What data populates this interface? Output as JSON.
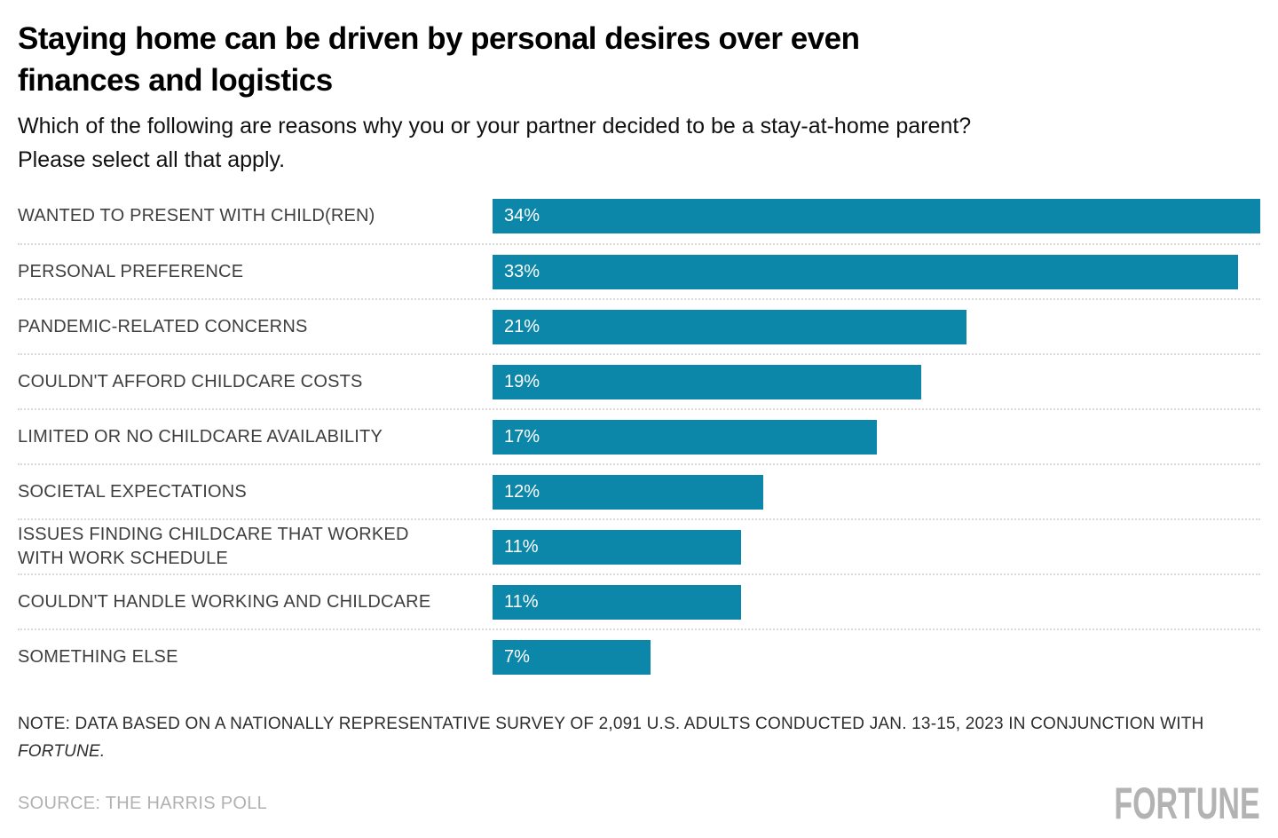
{
  "header": {
    "title_lines": [
      "Staying home can be driven by personal desires over even",
      "finances and logistics"
    ],
    "subtitle_lines": [
      "Which of the following are reasons why you or your partner decided to be a stay-at-home parent?",
      "Please select all that apply."
    ]
  },
  "chart_data": {
    "type": "bar",
    "orientation": "horizontal",
    "title": "Staying home can be driven by personal desires over even finances and logistics",
    "subtitle": "Which of the following are reasons why you or your partner decided to be a stay-at-home parent? Please select all that apply.",
    "categories": [
      "WANTED TO PRESENT WITH CHILD(REN)",
      "PERSONAL PREFERENCE",
      "PANDEMIC-RELATED CONCERNS",
      "COULDN'T AFFORD CHILDCARE COSTS",
      "LIMITED OR NO CHILDCARE AVAILABILITY",
      "SOCIETAL EXPECTATIONS",
      "ISSUES FINDING CHILDCARE THAT WORKED WITH WORK SCHEDULE",
      "COULDN'T HANDLE WORKING AND CHILDCARE",
      "SOMETHING ELSE"
    ],
    "values": [
      34,
      33,
      21,
      19,
      17,
      12,
      11,
      11,
      7
    ],
    "value_labels": [
      "34%",
      "33%",
      "21%",
      "19%",
      "17%",
      "12%",
      "11%",
      "11%",
      "7%"
    ],
    "xlim": [
      0,
      34
    ],
    "unit": "%",
    "bar_color": "#0c87a9",
    "grid": "dotted-row-separators",
    "legend": "none"
  },
  "footer": {
    "note_line1": "NOTE: DATA BASED ON A NATIONALLY REPRESENTATIVE SURVEY OF 2,091 U.S. ADULTS CONDUCTED JAN. 13-15, 2023 IN CONJUNCTION WITH",
    "note_italic": "FORTUNE.",
    "source": "SOURCE: THE HARRIS POLL",
    "logo": "FORTUNE"
  },
  "colors": {
    "bar": "#0c87a9",
    "label_text": "#3f3f3f",
    "separator": "#d9d9d9",
    "muted_gray": "#b1b1b1",
    "background": "#ffffff"
  }
}
